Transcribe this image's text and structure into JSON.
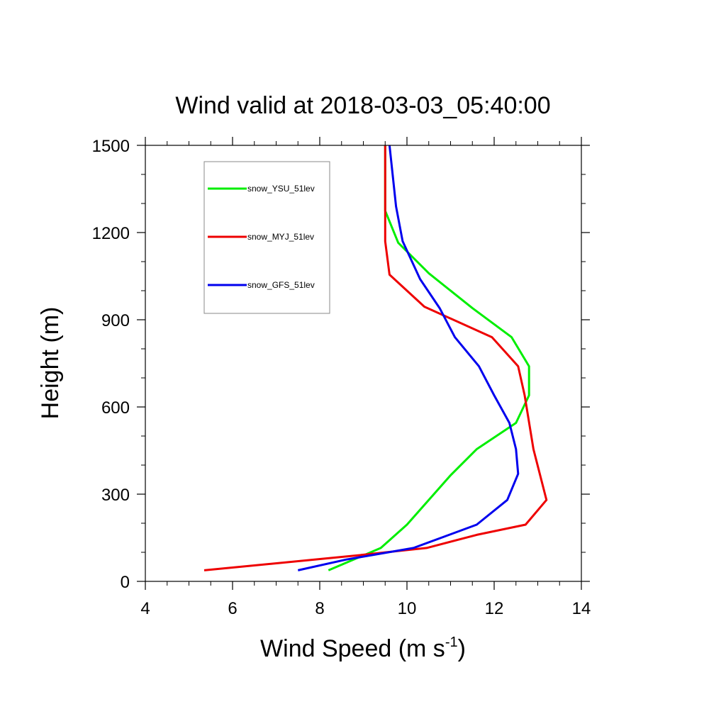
{
  "chart_data": {
    "type": "line",
    "title": "Wind valid at 2018-03-03_05:40:00",
    "xlabel": "Wind Speed (m s",
    "xlabel_superscript": "-1",
    "xlabel_suffix": ")",
    "ylabel": "Height (m)",
    "xlim": [
      4,
      14
    ],
    "ylim": [
      0,
      1500
    ],
    "xticks": [
      4,
      6,
      8,
      10,
      12,
      14
    ],
    "yticks": [
      0,
      300,
      600,
      900,
      1200,
      1500
    ],
    "grid": false,
    "legend_position": "top-left",
    "series": [
      {
        "name": "snow_YSU_51lev",
        "color": "#00ee00",
        "x": [
          8.2,
          9.4,
          10.0,
          11.0,
          11.6,
          12.5,
          12.8,
          12.8,
          12.4,
          11.5,
          10.5,
          9.8,
          9.5,
          9.5,
          9.5
        ],
        "y": [
          38,
          115,
          195,
          365,
          455,
          545,
          640,
          740,
          840,
          940,
          1060,
          1165,
          1275,
          1400,
          1500
        ]
      },
      {
        "name": "snow_MYJ_51lev",
        "color": "#ee0000",
        "x": [
          5.35,
          8.9,
          10.45,
          11.6,
          12.72,
          13.2,
          12.9,
          12.7,
          12.55,
          11.95,
          10.4,
          9.6,
          9.5,
          9.5,
          9.5
        ],
        "y": [
          38,
          90,
          115,
          160,
          195,
          280,
          455,
          640,
          740,
          840,
          945,
          1055,
          1170,
          1400,
          1500
        ]
      },
      {
        "name": "snow_GFS_51lev",
        "color": "#0000ee",
        "x": [
          7.5,
          8.6,
          10.15,
          11.6,
          12.3,
          12.55,
          12.5,
          12.35,
          12.0,
          11.65,
          11.1,
          10.75,
          10.3,
          9.9,
          9.75,
          9.6
        ],
        "y": [
          38,
          75,
          115,
          195,
          280,
          370,
          455,
          545,
          640,
          740,
          840,
          940,
          1040,
          1170,
          1290,
          1500
        ]
      }
    ]
  }
}
